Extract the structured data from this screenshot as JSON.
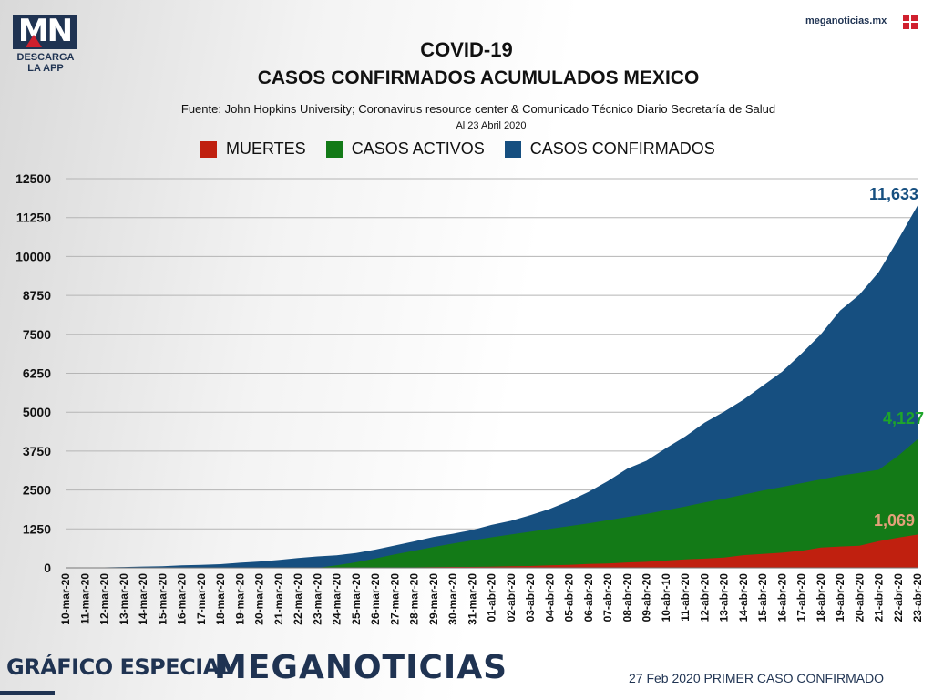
{
  "header": {
    "logo_letters": "MN",
    "logo_sub1": "DESCARGA",
    "logo_sub2": "LA APP",
    "site": "meganoticias.mx"
  },
  "footer": {
    "left": "GRÁFICO ESPECIAL",
    "brand": "MEGANOTICIAS",
    "right": "27 Feb 2020 PRIMER CASO CONFIRMADO"
  },
  "colors": {
    "muertes": "#c0200f",
    "activos": "#137a17",
    "confirmados": "#164f80",
    "navy": "#1f3352"
  },
  "chart_data": {
    "type": "area",
    "title": "COVID-19",
    "subtitle": "CASOS CONFIRMADOS ACUMULADOS MEXICO",
    "source": "Fuente: John Hopkins University; Coronavirus resource center & Comunicado Técnico Diario Secretaría de Salud",
    "date_note": "Al 23 Abril 2020",
    "ylim": [
      0,
      12500
    ],
    "yticks": [
      "0",
      "1250",
      "2500",
      "3750",
      "5000",
      "6250",
      "7500",
      "8750",
      "10000",
      "11250",
      "12500"
    ],
    "grid": true,
    "legend_position": "top",
    "categories": [
      "10-mar-20",
      "11-mar-20",
      "12-mar-20",
      "13-mar-20",
      "14-mar-20",
      "15-mar-20",
      "16-mar-20",
      "17-mar-20",
      "18-mar-20",
      "19-mar-20",
      "20-mar-20",
      "21-mar-20",
      "22-mar-20",
      "23-mar-20",
      "24-mar-20",
      "25-mar-20",
      "26-mar-20",
      "27-mar-20",
      "28-mar-20",
      "29-mar-20",
      "30-mar-20",
      "31-mar-20",
      "01-abr-20",
      "02-abr-20",
      "03-abr-20",
      "04-abr-20",
      "05-abr-20",
      "06-abr-20",
      "07-abr-20",
      "08-abr-20",
      "09-abr-20",
      "10-abr-10",
      "11-abr-20",
      "12-abr-20",
      "13-abr-20",
      "14-abr-20",
      "15-abr-20",
      "16-abr-20",
      "17-abr-20",
      "18-abr-20",
      "19-abr-20",
      "20-abr-20",
      "21-abr-20",
      "22-abr-20",
      "23-abr-20"
    ],
    "series": [
      {
        "name": "CASOS CONFIRMADOS",
        "color": "#164f80",
        "end_label": "11,633",
        "values": [
          7,
          11,
          16,
          26,
          41,
          53,
          82,
          93,
          118,
          164,
          203,
          251,
          316,
          367,
          405,
          475,
          585,
          717,
          848,
          993,
          1094,
          1215,
          1378,
          1510,
          1688,
          1890,
          2143,
          2439,
          2785,
          3181,
          3441,
          3844,
          4219,
          4661,
          5014,
          5399,
          5847,
          6297,
          6875,
          7497,
          8261,
          8772,
          9501,
          10544,
          11633
        ]
      },
      {
        "name": "CASOS ACTIVOS",
        "color": "#137a17",
        "end_label": "4,127",
        "values": [
          0,
          0,
          0,
          0,
          0,
          0,
          0,
          0,
          0,
          0,
          0,
          0,
          0,
          0,
          80,
          180,
          300,
          430,
          550,
          670,
          780,
          880,
          980,
          1070,
          1160,
          1250,
          1340,
          1430,
          1530,
          1630,
          1730,
          1850,
          1970,
          2100,
          2220,
          2350,
          2480,
          2600,
          2720,
          2840,
          2960,
          3050,
          3150,
          3600,
          4127
        ]
      },
      {
        "name": "MUERTES",
        "color": "#c0200f",
        "end_label": "1,069",
        "values": [
          0,
          0,
          0,
          0,
          0,
          0,
          0,
          0,
          0,
          1,
          2,
          2,
          3,
          4,
          5,
          6,
          8,
          12,
          16,
          20,
          28,
          29,
          37,
          50,
          60,
          79,
          94,
          125,
          141,
          174,
          194,
          233,
          273,
          296,
          332,
          406,
          449,
          486,
          546,
          650,
          686,
          712,
          857,
          970,
          1069
        ]
      }
    ]
  }
}
